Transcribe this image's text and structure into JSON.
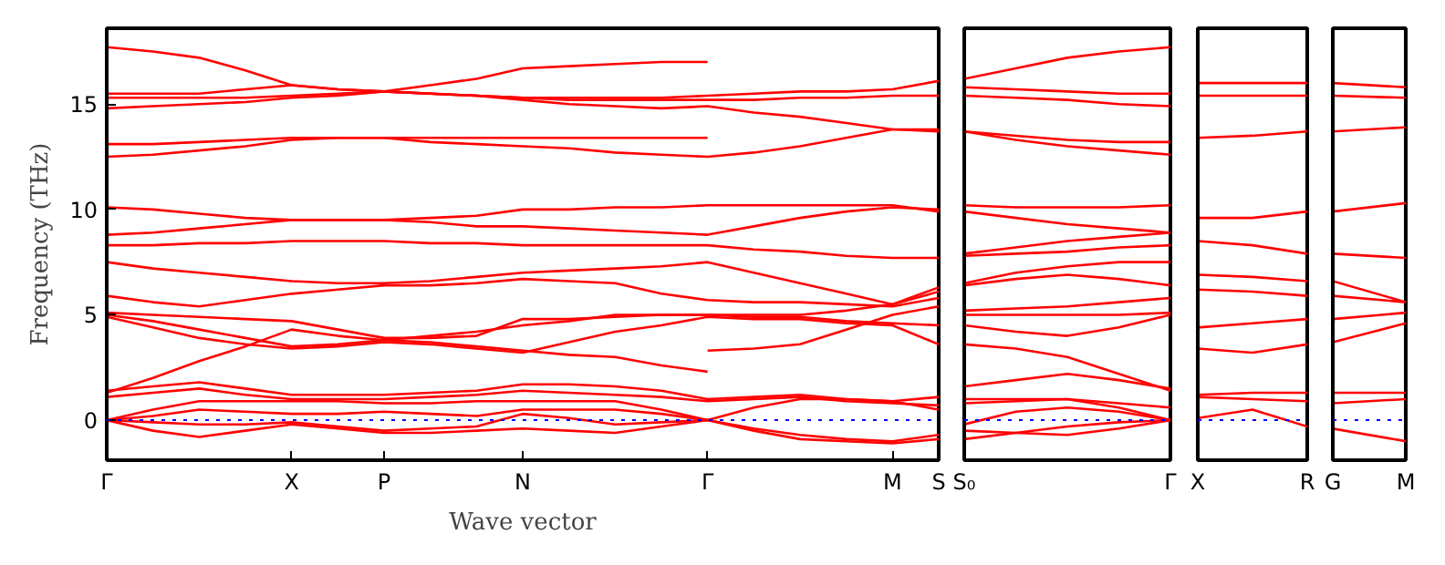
{
  "chart_data": [
    {
      "type": "line",
      "ylabel": "Frequency (THz)",
      "xlabel": "Wave vector",
      "ylim": [
        -1.9,
        18.6
      ],
      "yticks": [
        0,
        5,
        10,
        15
      ],
      "categories": [
        "Γ",
        null,
        null,
        null,
        "X",
        null,
        "P",
        null,
        null,
        "N",
        null,
        null,
        null,
        "Γ",
        null,
        null,
        null,
        "M",
        "S"
      ],
      "grid": false,
      "ref_lines": [
        {
          "axis": "y",
          "value": 0,
          "color": "#0000ff",
          "line_style": "dotted"
        }
      ],
      "series": [
        {
          "color": "#ff0000",
          "values": [
            17.7,
            17.5,
            17.2,
            16.6,
            15.9,
            15.7,
            15.6,
            15.9,
            16.2,
            16.7,
            16.8,
            16.9,
            17.0,
            17.0,
            null,
            null,
            null,
            null,
            null
          ]
        },
        {
          "color": "#ff0000",
          "values": [
            15.5,
            15.5,
            15.5,
            15.7,
            15.9,
            15.7,
            15.6,
            15.5,
            15.4,
            15.3,
            15.3,
            15.3,
            15.3,
            15.4,
            15.5,
            15.6,
            15.6,
            15.7,
            16.1
          ]
        },
        {
          "color": "#ff0000",
          "values": [
            15.3,
            15.3,
            15.3,
            15.3,
            15.4,
            15.5,
            15.6,
            15.5,
            15.4,
            15.3,
            15.2,
            15.2,
            15.2,
            15.2,
            15.2,
            15.3,
            15.3,
            15.4,
            15.4
          ]
        },
        {
          "color": "#ff0000",
          "values": [
            14.8,
            14.9,
            15.0,
            15.1,
            15.3,
            15.4,
            15.6,
            15.5,
            15.4,
            15.2,
            15.0,
            14.9,
            14.8,
            14.9,
            14.6,
            14.4,
            14.1,
            13.8,
            13.7
          ]
        },
        {
          "color": "#ff0000",
          "values": [
            13.1,
            13.1,
            13.2,
            13.3,
            13.4,
            13.4,
            13.4,
            13.4,
            13.4,
            13.4,
            13.4,
            13.4,
            13.4,
            13.4,
            null,
            null,
            null,
            null,
            null
          ]
        },
        {
          "color": "#ff0000",
          "values": [
            12.5,
            12.6,
            12.8,
            13.0,
            13.3,
            13.4,
            13.4,
            13.2,
            13.1,
            13.0,
            12.9,
            12.7,
            12.6,
            12.5,
            12.7,
            13.0,
            13.4,
            13.8,
            13.8
          ]
        },
        {
          "color": "#ff0000",
          "values": [
            10.1,
            10.0,
            9.8,
            9.6,
            9.5,
            9.5,
            9.5,
            9.6,
            9.7,
            10.0,
            10.0,
            10.1,
            10.1,
            10.2,
            10.2,
            10.2,
            10.2,
            10.2,
            9.9
          ]
        },
        {
          "color": "#ff0000",
          "values": [
            8.8,
            8.9,
            9.1,
            9.3,
            9.5,
            9.5,
            9.5,
            9.4,
            9.2,
            9.2,
            9.1,
            9.0,
            8.9,
            8.8,
            9.2,
            9.6,
            9.9,
            10.1,
            10.0
          ]
        },
        {
          "color": "#ff0000",
          "values": [
            8.3,
            8.3,
            8.4,
            8.4,
            8.5,
            8.5,
            8.5,
            8.4,
            8.4,
            8.3,
            8.3,
            8.3,
            8.3,
            8.3,
            8.1,
            8.0,
            7.8,
            7.7,
            7.7
          ]
        },
        {
          "color": "#ff0000",
          "values": [
            7.5,
            7.2,
            7.0,
            6.8,
            6.6,
            6.5,
            6.5,
            6.6,
            6.8,
            7.0,
            7.1,
            7.2,
            7.3,
            7.5,
            7.0,
            6.5,
            6.0,
            5.5,
            6.3
          ]
        },
        {
          "color": "#ff0000",
          "values": [
            5.9,
            5.6,
            5.4,
            5.7,
            6.0,
            6.2,
            6.4,
            6.4,
            6.5,
            6.7,
            6.6,
            6.5,
            6.0,
            5.7,
            5.6,
            5.6,
            5.5,
            5.4,
            5.8
          ]
        },
        {
          "color": "#ff0000",
          "values": [
            5.1,
            5.0,
            4.9,
            4.8,
            4.7,
            4.3,
            3.9,
            3.9,
            4.0,
            4.8,
            4.8,
            4.9,
            5.0,
            5.0,
            4.9,
            4.9,
            4.7,
            4.6,
            4.5
          ]
        },
        {
          "color": "#ff0000",
          "values": [
            5.0,
            4.7,
            4.3,
            3.9,
            3.5,
            3.6,
            3.8,
            4.0,
            4.2,
            4.5,
            4.7,
            5.0,
            5.0,
            5.0,
            5.0,
            5.0,
            5.2,
            5.5,
            6.1
          ]
        },
        {
          "color": "#ff0000",
          "values": [
            4.9,
            4.4,
            3.9,
            3.6,
            3.4,
            3.5,
            3.7,
            3.6,
            3.4,
            3.2,
            3.7,
            4.2,
            4.5,
            4.9,
            4.8,
            4.8,
            4.6,
            4.5,
            3.6
          ]
        },
        {
          "color": "#ff0000",
          "values": [
            1.3,
            2.0,
            2.8,
            3.5,
            4.3,
            4.0,
            3.8,
            3.7,
            3.5,
            3.3,
            3.1,
            3.0,
            2.6,
            2.3,
            null,
            null,
            null,
            null,
            null
          ]
        },
        {
          "color": "#ff0000",
          "values": [
            null,
            null,
            null,
            null,
            null,
            null,
            null,
            null,
            null,
            null,
            null,
            null,
            null,
            3.3,
            3.4,
            3.6,
            4.3,
            5.0,
            5.4
          ]
        },
        {
          "color": "#ff0000",
          "values": [
            1.4,
            1.6,
            1.8,
            1.5,
            1.2,
            1.2,
            1.2,
            1.3,
            1.4,
            1.7,
            1.7,
            1.6,
            1.4,
            1.0,
            1.1,
            1.2,
            1.0,
            0.9,
            1.1
          ]
        },
        {
          "color": "#ff0000",
          "values": [
            1.1,
            1.3,
            1.5,
            1.2,
            1.0,
            1.0,
            1.0,
            1.1,
            1.2,
            1.4,
            1.3,
            1.2,
            1.1,
            0.9,
            1.0,
            1.1,
            0.9,
            0.8,
            0.7
          ]
        },
        {
          "color": "#ff0000",
          "values": [
            0,
            0.5,
            0.9,
            0.9,
            0.9,
            0.9,
            0.8,
            0.8,
            0.9,
            0.9,
            0.9,
            0.9,
            0.5,
            0,
            0.6,
            1.0,
            1.0,
            0.9,
            0.5
          ]
        },
        {
          "color": "#ff0000",
          "values": [
            0,
            0.2,
            0.5,
            0.4,
            0.3,
            0.3,
            0.4,
            0.3,
            0.2,
            0.5,
            0.5,
            0.5,
            0.3,
            0,
            -0.5,
            -0.9,
            -1.0,
            -1.1,
            -0.9
          ]
        },
        {
          "color": "#ff0000",
          "values": [
            0,
            -0.1,
            -0.2,
            -0.2,
            -0.1,
            -0.3,
            -0.5,
            -0.4,
            -0.3,
            0.3,
            0.1,
            -0.2,
            -0.1,
            0,
            -0.4,
            -0.7,
            -0.9,
            -1.0,
            -0.7
          ]
        },
        {
          "color": "#ff0000",
          "values": [
            0,
            -0.5,
            -0.8,
            -0.5,
            -0.2,
            -0.4,
            -0.6,
            -0.6,
            -0.5,
            -0.4,
            -0.5,
            -0.6,
            -0.3,
            0,
            null,
            null,
            null,
            null,
            null
          ]
        }
      ]
    },
    {
      "type": "line",
      "ylim": [
        -1.9,
        18.6
      ],
      "yticks": [
        0,
        5,
        10,
        15
      ],
      "tick_labels": "x",
      "categories": [
        "S₀",
        null,
        null,
        null,
        "Γ"
      ],
      "grid": false,
      "ref_lines": [
        {
          "axis": "y",
          "value": 0,
          "color": "#0000ff",
          "line_style": "dotted"
        }
      ],
      "series": [
        {
          "color": "#ff0000",
          "values": [
            16.2,
            16.7,
            17.2,
            17.5,
            17.7
          ]
        },
        {
          "color": "#ff0000",
          "values": [
            15.8,
            15.7,
            15.6,
            15.5,
            15.5
          ]
        },
        {
          "color": "#ff0000",
          "values": [
            15.4,
            15.3,
            15.2,
            15.0,
            14.9
          ]
        },
        {
          "color": "#ff0000",
          "values": [
            13.7,
            13.5,
            13.3,
            13.2,
            13.2
          ]
        },
        {
          "color": "#ff0000",
          "values": [
            13.7,
            13.3,
            13.0,
            12.8,
            12.6
          ]
        },
        {
          "color": "#ff0000",
          "values": [
            10.2,
            10.1,
            10.1,
            10.1,
            10.2
          ]
        },
        {
          "color": "#ff0000",
          "values": [
            9.9,
            9.6,
            9.3,
            9.1,
            8.9
          ]
        },
        {
          "color": "#ff0000",
          "values": [
            7.9,
            8.2,
            8.5,
            8.7,
            8.9
          ]
        },
        {
          "color": "#ff0000",
          "values": [
            7.8,
            7.9,
            8.0,
            8.2,
            8.3
          ]
        },
        {
          "color": "#ff0000",
          "values": [
            6.5,
            7.0,
            7.3,
            7.5,
            7.5
          ]
        },
        {
          "color": "#ff0000",
          "values": [
            6.4,
            6.7,
            6.9,
            6.7,
            6.4
          ]
        },
        {
          "color": "#ff0000",
          "values": [
            5.2,
            5.3,
            5.4,
            5.6,
            5.8
          ]
        },
        {
          "color": "#ff0000",
          "values": [
            5.0,
            5.0,
            5.0,
            5.0,
            5.1
          ]
        },
        {
          "color": "#ff0000",
          "values": [
            4.5,
            4.2,
            4.0,
            4.4,
            5.0
          ]
        },
        {
          "color": "#ff0000",
          "values": [
            3.6,
            3.4,
            3.0,
            2.2,
            1.4
          ]
        },
        {
          "color": "#ff0000",
          "values": [
            1.6,
            1.9,
            2.2,
            1.9,
            1.5
          ]
        },
        {
          "color": "#ff0000",
          "values": [
            1.0,
            1.0,
            1.0,
            0.8,
            0.6
          ]
        },
        {
          "color": "#ff0000",
          "values": [
            0.8,
            0.9,
            1.0,
            0.6,
            0
          ]
        },
        {
          "color": "#ff0000",
          "values": [
            -0.2,
            0.4,
            0.6,
            0.4,
            0
          ]
        },
        {
          "color": "#ff0000",
          "values": [
            -0.9,
            -0.6,
            -0.3,
            -0.1,
            0
          ]
        },
        {
          "color": "#ff0000",
          "values": [
            -0.5,
            -0.6,
            -0.7,
            -0.4,
            0
          ]
        }
      ]
    },
    {
      "type": "line",
      "ylim": [
        -1.9,
        18.6
      ],
      "yticks": [
        0,
        5,
        10,
        15
      ],
      "tick_labels": "x",
      "categories": [
        "X",
        null,
        "R"
      ],
      "grid": false,
      "ref_lines": [
        {
          "axis": "y",
          "value": 0,
          "color": "#0000ff",
          "line_style": "dotted"
        }
      ],
      "series": [
        {
          "color": "#ff0000",
          "values": [
            16.0,
            16.0,
            16.0
          ]
        },
        {
          "color": "#ff0000",
          "values": [
            15.4,
            15.4,
            15.4
          ]
        },
        {
          "color": "#ff0000",
          "values": [
            13.4,
            13.5,
            13.7
          ]
        },
        {
          "color": "#ff0000",
          "values": [
            9.6,
            9.6,
            9.9
          ]
        },
        {
          "color": "#ff0000",
          "values": [
            8.5,
            8.3,
            7.9
          ]
        },
        {
          "color": "#ff0000",
          "values": [
            6.9,
            6.8,
            6.6
          ]
        },
        {
          "color": "#ff0000",
          "values": [
            6.2,
            6.1,
            5.9
          ]
        },
        {
          "color": "#ff0000",
          "values": [
            4.4,
            4.6,
            4.8
          ]
        },
        {
          "color": "#ff0000",
          "values": [
            3.4,
            3.2,
            3.6
          ]
        },
        {
          "color": "#ff0000",
          "values": [
            1.2,
            1.3,
            1.3
          ]
        },
        {
          "color": "#ff0000",
          "values": [
            1.1,
            1.0,
            0.9
          ]
        },
        {
          "color": "#ff0000",
          "values": [
            0.1,
            0.5,
            -0.3
          ]
        }
      ]
    },
    {
      "type": "line",
      "ylim": [
        -1.9,
        18.6
      ],
      "yticks": [
        0,
        5,
        10,
        15
      ],
      "tick_labels": "x",
      "categories": [
        "G",
        "M"
      ],
      "ref_lines": [
        {
          "axis": "y",
          "value": 0,
          "color": "#0000ff",
          "line_style": "dotted"
        }
      ],
      "series": [
        {
          "color": "#ff0000",
          "values": [
            16.0,
            15.8
          ]
        },
        {
          "color": "#ff0000",
          "values": [
            15.4,
            15.3
          ]
        },
        {
          "color": "#ff0000",
          "values": [
            13.7,
            13.9
          ]
        },
        {
          "color": "#ff0000",
          "values": [
            9.9,
            10.3
          ]
        },
        {
          "color": "#ff0000",
          "values": [
            7.9,
            7.7
          ]
        },
        {
          "color": "#ff0000",
          "values": [
            6.6,
            5.6
          ]
        },
        {
          "color": "#ff0000",
          "values": [
            5.9,
            5.6
          ]
        },
        {
          "color": "#ff0000",
          "values": [
            4.8,
            5.1
          ]
        },
        {
          "color": "#ff0000",
          "values": [
            3.7,
            4.6
          ]
        },
        {
          "color": "#ff0000",
          "values": [
            1.3,
            1.3
          ]
        },
        {
          "color": "#ff0000",
          "values": [
            0.8,
            1.0
          ]
        },
        {
          "color": "#ff0000",
          "values": [
            -0.4,
            -1.0
          ]
        }
      ]
    }
  ]
}
